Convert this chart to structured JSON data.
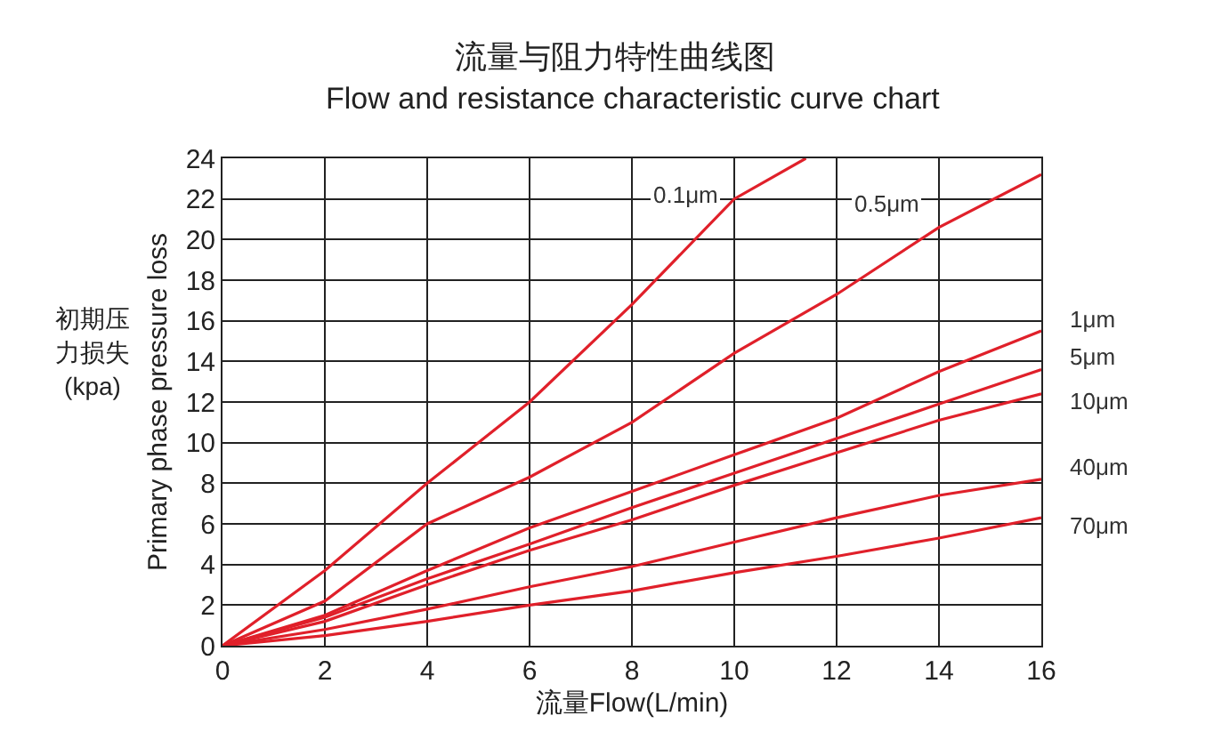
{
  "chart_data": {
    "type": "line",
    "title": "流量与阻力特性曲线图",
    "subtitle": "Flow and resistance characteristic curve chart",
    "xlabel": "流量Flow(L/min)",
    "ylabel": "Primary phase pressure loss",
    "annotations": [
      "初期压力损失",
      "(kpa)"
    ],
    "xlim": [
      0,
      16
    ],
    "ylim": [
      0,
      24
    ],
    "xticks": [
      0,
      2,
      4,
      6,
      8,
      10,
      12,
      14,
      16
    ],
    "yticks": [
      0,
      2,
      4,
      6,
      8,
      10,
      12,
      14,
      16,
      18,
      20,
      22,
      24
    ],
    "grid": true,
    "legend": false,
    "marker": "none",
    "line_style": "solid",
    "series": [
      {
        "name": "0.1μm",
        "color": "#e0202a",
        "x": [
          0,
          2,
          4,
          6,
          8,
          10,
          11.4
        ],
        "values": [
          0,
          3.7,
          8,
          12,
          16.8,
          22,
          24
        ]
      },
      {
        "name": "0.5μm",
        "color": "#e0202a",
        "x": [
          0,
          2,
          4,
          6,
          8,
          10,
          12,
          14,
          16
        ],
        "values": [
          0,
          2.2,
          6,
          8.3,
          11,
          14.4,
          17.3,
          20.6,
          23.2
        ]
      },
      {
        "name": "1μm",
        "color": "#e0202a",
        "x": [
          0,
          2,
          4,
          6,
          8,
          10,
          12,
          14,
          16
        ],
        "values": [
          0,
          1.5,
          3.7,
          5.8,
          7.6,
          9.4,
          11.2,
          13.5,
          15.5
        ]
      },
      {
        "name": "5μm",
        "color": "#e0202a",
        "x": [
          0,
          2,
          4,
          6,
          8,
          10,
          12,
          14,
          16
        ],
        "values": [
          0,
          1.4,
          3.3,
          5,
          6.8,
          8.5,
          10.2,
          11.9,
          13.6
        ]
      },
      {
        "name": "10μm",
        "color": "#e0202a",
        "x": [
          0,
          2,
          4,
          6,
          8,
          10,
          12,
          14,
          16
        ],
        "values": [
          0,
          1.2,
          3,
          4.7,
          6.2,
          7.9,
          9.5,
          11.1,
          12.4
        ]
      },
      {
        "name": "40μm",
        "color": "#e0202a",
        "x": [
          0,
          2,
          4,
          6,
          8,
          10,
          12,
          14,
          16
        ],
        "values": [
          0,
          0.8,
          1.8,
          2.9,
          3.9,
          5.1,
          6.3,
          7.4,
          8.2
        ]
      },
      {
        "name": "70μm",
        "color": "#e0202a",
        "x": [
          0,
          2,
          4,
          6,
          8,
          10,
          12,
          14,
          16
        ],
        "values": [
          0,
          0.5,
          1.2,
          2,
          2.7,
          3.6,
          4.4,
          5.3,
          6.3
        ]
      }
    ]
  }
}
